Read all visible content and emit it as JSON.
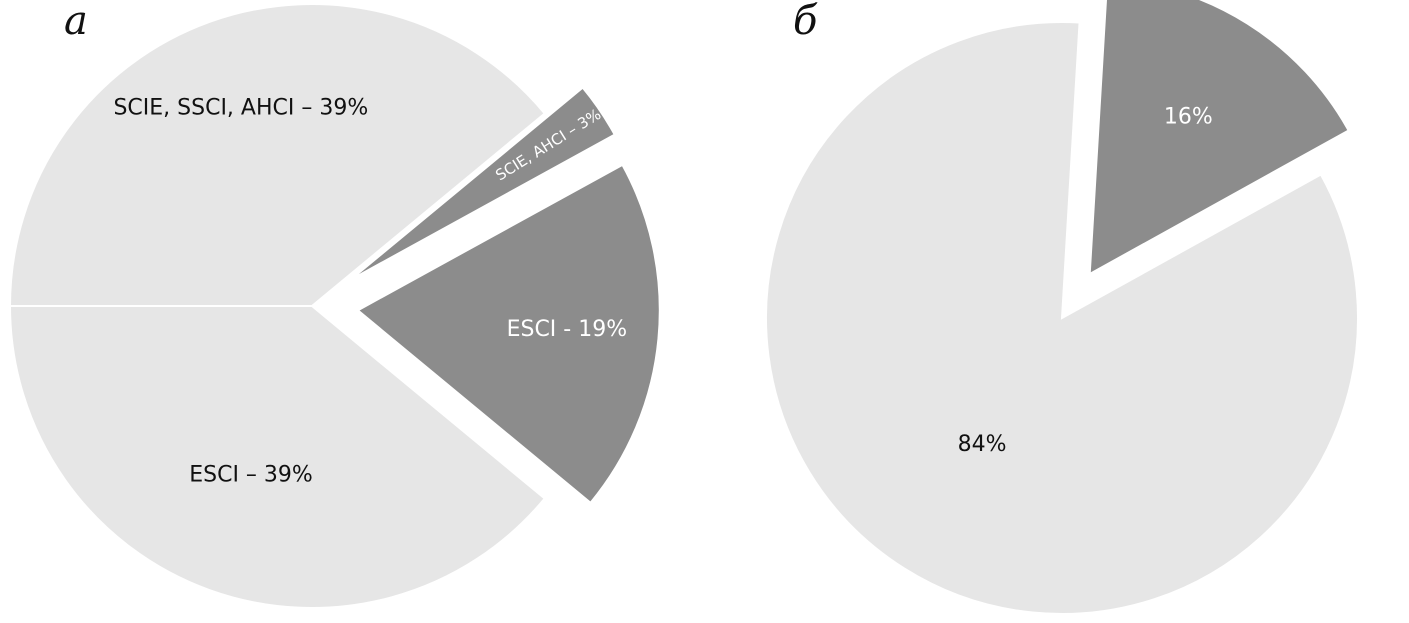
{
  "chart_data": [
    {
      "type": "pie",
      "panel_label": "а",
      "slices": [
        {
          "label": "SCIE, SSCI, AHCI – 39%",
          "value": 39,
          "color": "#e6e6e6",
          "text_color": "#111111",
          "exploded": false
        },
        {
          "label": "SCIE, AHCI – 3%",
          "value": 3,
          "color": "#8c8c8c",
          "text_color": "#ffffff",
          "exploded": true
        },
        {
          "label": "ESCI - 19%",
          "value": 19,
          "color": "#8c8c8c",
          "text_color": "#ffffff",
          "exploded": true
        },
        {
          "label": "ESCI – 39%",
          "value": 39,
          "color": "#e6e6e6",
          "text_color": "#111111",
          "exploded": false
        }
      ]
    },
    {
      "type": "pie",
      "panel_label": "б",
      "slices": [
        {
          "label": "84%",
          "value": 84,
          "color": "#e6e6e6",
          "text_color": "#111111",
          "exploded": false
        },
        {
          "label": "16%",
          "value": 16,
          "color": "#8c8c8c",
          "text_color": "#ffffff",
          "exploded": true
        }
      ]
    }
  ]
}
